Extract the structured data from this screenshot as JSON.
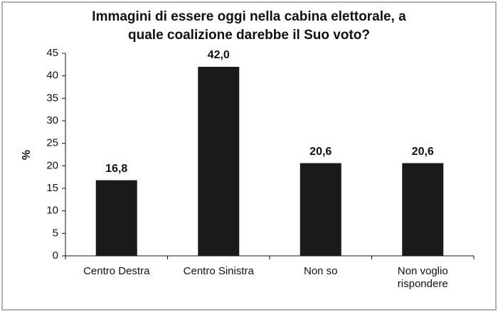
{
  "chart_data": {
    "type": "bar",
    "title": [
      "Immagini di essere oggi nella cabina elettorale, a",
      "quale coalizione darebbe il Suo voto?"
    ],
    "y_label": "%",
    "categories": [
      "Centro Destra",
      "Centro Sinistra",
      "Non so",
      "Non voglio rispondere"
    ],
    "values": [
      16.8,
      42.0,
      20.6,
      20.6
    ],
    "value_labels": [
      "16,8",
      "42,0",
      "20,6",
      "20,6"
    ],
    "color": "#1a1a1a",
    "ylim": [
      0,
      45
    ],
    "yticks": [
      0,
      5,
      10,
      15,
      20,
      25,
      30,
      35,
      40,
      45
    ]
  }
}
